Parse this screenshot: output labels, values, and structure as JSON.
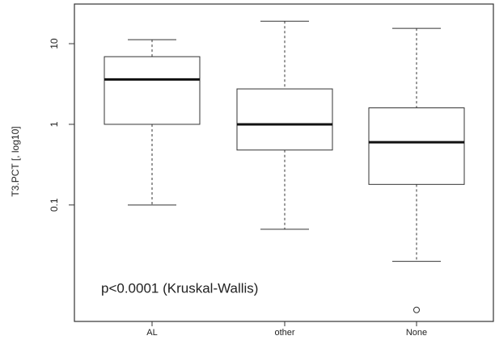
{
  "chart_data": {
    "type": "box",
    "y_label": "T3.PCT [, log10]",
    "annotation": "p<0.0001 (Kruskal-Wallis)",
    "categories": [
      "AL",
      "other",
      "None"
    ],
    "boxes": [
      {
        "whisker_low": 0.1,
        "q1": 1,
        "median": 3.6,
        "q3": 6.9,
        "whisker_high": 11.2,
        "outliers": []
      },
      {
        "whisker_low": 0.05,
        "q1": 0.48,
        "median": 1,
        "q3": 2.75,
        "whisker_high": 19,
        "outliers": []
      },
      {
        "whisker_low": 0.02,
        "q1": 0.18,
        "median": 0.6,
        "q3": 1.6,
        "whisker_high": 15.5,
        "outliers": [
          0.005
        ]
      }
    ],
    "log_scale": true,
    "ylim": [
      0.0036,
      31
    ],
    "yticks": [
      0.1,
      1,
      10
    ]
  }
}
